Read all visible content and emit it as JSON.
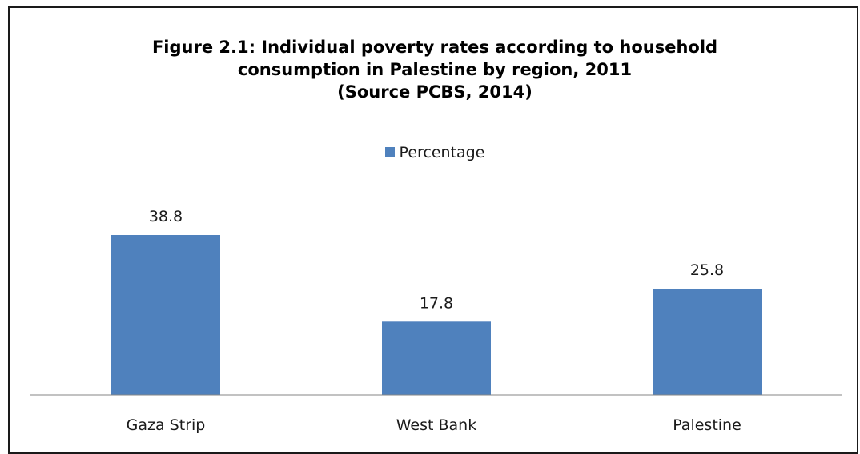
{
  "chart_data": {
    "type": "bar",
    "title_lines": [
      "Figure 2.1: Individual poverty rates according to household",
      "consumption in Palestine by region, 2011",
      "(Source PCBS, 2014)"
    ],
    "categories": [
      "Gaza Strip",
      "West Bank",
      "Palestine"
    ],
    "series": [
      {
        "name": "Percentage",
        "values": [
          38.8,
          17.8,
          25.8
        ]
      }
    ],
    "data_labels": [
      "38.8",
      "17.8",
      "25.8"
    ],
    "legend_position": "top",
    "grid": false,
    "ylim": [
      0,
      45
    ],
    "bar_color": "#4f81bd",
    "axis_color": "#868686"
  }
}
